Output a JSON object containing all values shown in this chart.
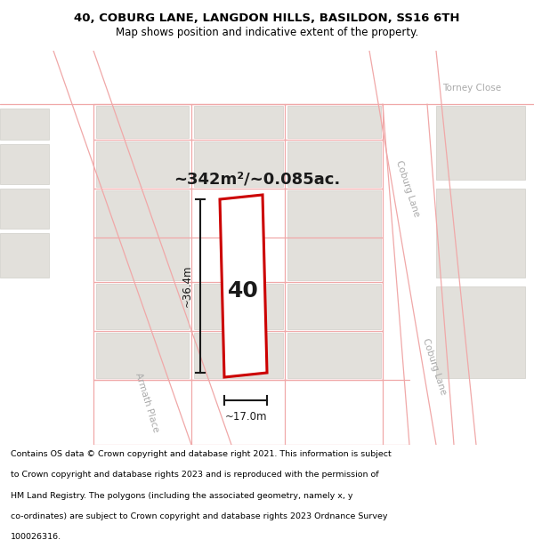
{
  "title_line1": "40, COBURG LANE, LANGDON HILLS, BASILDON, SS16 6TH",
  "title_line2": "Map shows position and indicative extent of the property.",
  "area_text": "~342m²/~0.085ac.",
  "label_number": "40",
  "dim_width": "~17.0m",
  "dim_height": "~36.4m",
  "footer_lines": [
    "Contains OS data © Crown copyright and database right 2021. This information is subject",
    "to Crown copyright and database rights 2023 and is reproduced with the permission of",
    "HM Land Registry. The polygons (including the associated geometry, namely x, y",
    "co-ordinates) are subject to Crown copyright and database rights 2023 Ordnance Survey",
    "100026316."
  ],
  "map_bg": "#f7f6f4",
  "road_fill": "#ffffff",
  "block_fill": "#e2e0db",
  "block_edge": "#d0cec9",
  "street_line": "#f0a8a8",
  "plot_color": "#cc0000",
  "dim_color": "#1a1a1a",
  "label_color": "#1a1a1a",
  "street_text_color": "#aaaaaa",
  "white": "#ffffff"
}
